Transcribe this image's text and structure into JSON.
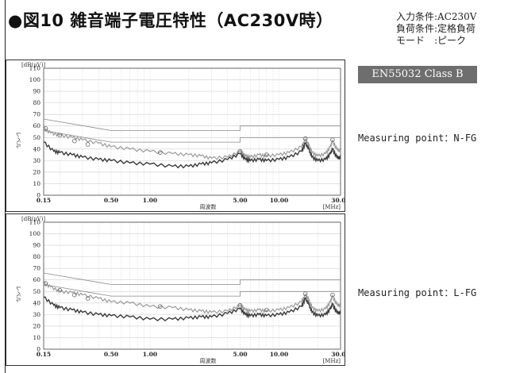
{
  "header": {
    "title": "●図10 雑音端子電圧特性（AC230V時）",
    "conditions": [
      "入力条件:AC230V",
      "負荷条件:定格負荷",
      "モード　:ピーク"
    ],
    "badge": "EN55032 Class B"
  },
  "colors": {
    "trace_peak": "#9a9a9a",
    "trace_avg": "#3a3a3a",
    "limit": "#8a8a8a",
    "grid": "#cfcfcf"
  },
  "chart_data": [
    {
      "type": "line",
      "measuring_point": "Measuring point：N-FG",
      "ylabel": "レベル",
      "xlabel": "周波数",
      "y_unit": "[dB(μV)]",
      "x_unit": "[MHz]",
      "x_scale": "log",
      "xlim": [
        0.15,
        30
      ],
      "ylim": [
        0,
        110
      ],
      "yticks": [
        0,
        10,
        20,
        30,
        40,
        50,
        60,
        70,
        80,
        90,
        100,
        110
      ],
      "xticks": [
        0.15,
        0.5,
        1.0,
        5.0,
        10.0,
        30.0
      ],
      "xtick_labels": [
        "0.15",
        "0.50",
        "1.00",
        "5.00",
        "10.00",
        "30.00"
      ],
      "grid": true,
      "limits": [
        {
          "x": [
            0.15,
            0.5,
            0.5,
            5,
            5,
            30
          ],
          "y": [
            66,
            56,
            56,
            56,
            60,
            60
          ]
        },
        {
          "x": [
            0.15,
            0.5,
            0.5,
            5,
            5,
            30
          ],
          "y": [
            56,
            46,
            46,
            46,
            50,
            50
          ]
        }
      ],
      "series": [
        {
          "x": [
            0.15,
            0.17,
            0.2,
            0.25,
            0.3,
            0.4,
            0.5,
            0.7,
            1.0,
            1.5,
            2.0,
            2.5,
            3.0,
            4.0,
            5.0,
            5.5,
            6.0,
            7.0,
            8.0,
            10.0,
            12.0,
            15.0,
            16.0,
            17.0,
            18.0,
            20.0,
            23.0,
            25.0,
            26.0,
            28.0,
            30.0
          ],
          "y": [
            58,
            54,
            52,
            50,
            48,
            45,
            42,
            40,
            38,
            36,
            35,
            34,
            32,
            33,
            38,
            34,
            33,
            35,
            34,
            35,
            37,
            42,
            48,
            44,
            37,
            34,
            36,
            42,
            47,
            40,
            38
          ]
        },
        {
          "x": [
            0.15,
            0.18,
            0.2,
            0.25,
            0.3,
            0.4,
            0.5,
            0.7,
            1.0,
            1.5,
            2.0,
            2.5,
            3.0,
            4.0,
            5.0,
            5.5,
            6.0,
            7.0,
            8.0,
            10.0,
            12.0,
            15.0,
            16.0,
            17.0,
            18.0,
            20.0,
            23.0,
            25.0,
            26.0,
            28.0,
            30.0
          ],
          "y": [
            46,
            38,
            37,
            35,
            33,
            31,
            30,
            28,
            27,
            25,
            25,
            27,
            28,
            31,
            36,
            31,
            30,
            31,
            30,
            31,
            33,
            38,
            45,
            40,
            33,
            30,
            31,
            36,
            40,
            33,
            32
          ]
        }
      ],
      "markers": [
        {
          "x": 0.155,
          "y": 58
        },
        {
          "x": 0.2,
          "y": 52
        },
        {
          "x": 0.26,
          "y": 47
        },
        {
          "x": 0.33,
          "y": 44
        },
        {
          "x": 1.2,
          "y": 37
        },
        {
          "x": 5.0,
          "y": 38
        },
        {
          "x": 8.0,
          "y": 35
        },
        {
          "x": 16.0,
          "y": 49
        },
        {
          "x": 26.0,
          "y": 48
        }
      ]
    },
    {
      "type": "line",
      "measuring_point": "Measuring point：L-FG",
      "ylabel": "レベル",
      "xlabel": "周波数",
      "y_unit": "[dB(μV)]",
      "x_unit": "[MHz]",
      "x_scale": "log",
      "xlim": [
        0.15,
        30
      ],
      "ylim": [
        0,
        110
      ],
      "yticks": [
        0,
        10,
        20,
        30,
        40,
        50,
        60,
        70,
        80,
        90,
        100,
        110
      ],
      "xticks": [
        0.15,
        0.5,
        1.0,
        5.0,
        10.0,
        30.0
      ],
      "xtick_labels": [
        "0.15",
        "0.50",
        "1.00",
        "5.00",
        "10.00",
        "30.00"
      ],
      "grid": true,
      "limits": [
        {
          "x": [
            0.15,
            0.5,
            0.5,
            5,
            5,
            30
          ],
          "y": [
            66,
            56,
            56,
            56,
            60,
            60
          ]
        },
        {
          "x": [
            0.15,
            0.5,
            0.5,
            5,
            5,
            30
          ],
          "y": [
            56,
            46,
            46,
            46,
            50,
            50
          ]
        }
      ],
      "series": [
        {
          "x": [
            0.15,
            0.17,
            0.2,
            0.25,
            0.3,
            0.4,
            0.5,
            0.7,
            1.0,
            1.5,
            2.0,
            2.5,
            3.0,
            4.0,
            5.0,
            5.5,
            6.0,
            7.0,
            8.0,
            10.0,
            12.0,
            15.0,
            16.0,
            17.0,
            18.0,
            20.0,
            23.0,
            25.0,
            26.0,
            28.0,
            30.0
          ],
          "y": [
            57,
            54,
            50,
            49,
            47,
            44,
            41,
            40,
            37,
            36,
            34,
            33,
            32,
            33,
            38,
            34,
            33,
            34,
            33,
            34,
            36,
            41,
            47,
            43,
            36,
            33,
            35,
            41,
            46,
            39,
            37
          ]
        },
        {
          "x": [
            0.15,
            0.18,
            0.2,
            0.25,
            0.3,
            0.4,
            0.5,
            0.7,
            1.0,
            1.5,
            2.0,
            2.5,
            3.0,
            4.0,
            5.0,
            5.5,
            6.0,
            7.0,
            8.0,
            10.0,
            12.0,
            15.0,
            16.0,
            17.0,
            18.0,
            20.0,
            23.0,
            25.0,
            26.0,
            28.0,
            30.0
          ],
          "y": [
            45,
            38,
            36,
            34,
            32,
            30,
            29,
            28,
            26,
            26,
            27,
            28,
            28,
            31,
            35,
            30,
            29,
            30,
            29,
            30,
            32,
            37,
            44,
            39,
            32,
            29,
            30,
            35,
            39,
            32,
            31
          ]
        }
      ],
      "markers": [
        {
          "x": 0.155,
          "y": 57
        },
        {
          "x": 0.2,
          "y": 51
        },
        {
          "x": 0.26,
          "y": 47
        },
        {
          "x": 0.33,
          "y": 44
        },
        {
          "x": 1.2,
          "y": 37
        },
        {
          "x": 5.0,
          "y": 38
        },
        {
          "x": 8.0,
          "y": 34
        },
        {
          "x": 16.0,
          "y": 48
        },
        {
          "x": 26.0,
          "y": 47
        }
      ]
    }
  ]
}
